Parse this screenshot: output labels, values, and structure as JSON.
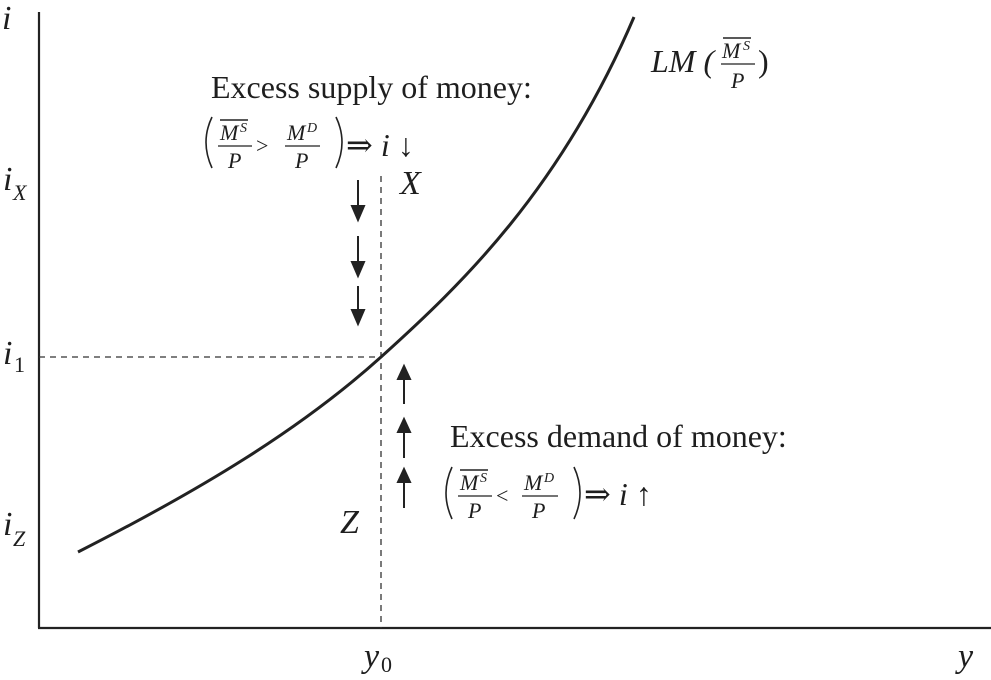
{
  "axes": {
    "y_axis_label": "i",
    "x_axis_label": "y",
    "tick_y0": "y",
    "tick_y0_sub": "0",
    "tick_i1": "i",
    "tick_i1_sub": "1",
    "tick_iX": "i",
    "tick_iX_sub": "X",
    "tick_iZ": "i",
    "tick_iZ_sub": "Z"
  },
  "curve": {
    "label_prefix": "LM (",
    "label_suffix": ")",
    "frac_num": "M",
    "frac_num_sup": "S",
    "frac_den": "P"
  },
  "points": {
    "x_label": "X",
    "z_label": "Z"
  },
  "excess_supply": {
    "title": "Excess supply of money:",
    "lhs_num": "M",
    "lhs_num_sup": "S",
    "lhs_den": "P",
    "relation": ">",
    "rhs_num": "M",
    "rhs_num_sup": "D",
    "rhs_den": "P",
    "implies": "⇒ i ↓"
  },
  "excess_demand": {
    "title": "Excess demand of money:",
    "lhs_num": "M",
    "lhs_num_sup": "S",
    "lhs_den": "P",
    "relation": "<",
    "rhs_num": "M",
    "rhs_num_sup": "D",
    "rhs_den": "P",
    "implies": "⇒ i ↑"
  }
}
